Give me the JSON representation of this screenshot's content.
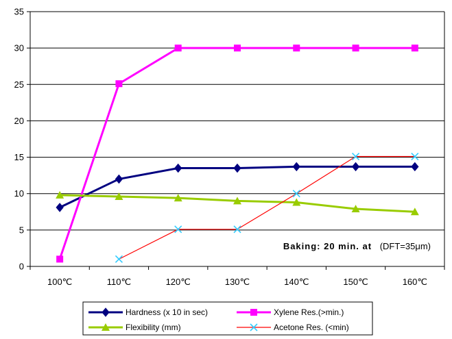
{
  "chart_data": {
    "type": "line",
    "categories": [
      "100℃",
      "110℃",
      "120℃",
      "130℃",
      "140℃",
      "150℃",
      "160℃"
    ],
    "ylim": [
      0,
      35
    ],
    "yticks": [
      0,
      5,
      10,
      15,
      20,
      25,
      30,
      35
    ],
    "grid": true,
    "legend_position": "bottom",
    "annotation": {
      "bold": "Baking: 20 min. at",
      "normal": "(DFT=35μm)"
    },
    "series": [
      {
        "name": "Hardness (x 10 in sec)",
        "color": "#000080",
        "marker": "diamond",
        "values": [
          8.1,
          12.0,
          13.5,
          13.5,
          13.7,
          13.7,
          13.7
        ]
      },
      {
        "name": "Xylene Res.(>min.)",
        "color": "#ff00ff",
        "marker": "square",
        "values": [
          1.0,
          25.1,
          30.0,
          30.0,
          30.0,
          30.0,
          30.0
        ]
      },
      {
        "name": "Flexibility (mm)",
        "color": "#99cc00",
        "marker": "triangle",
        "values": [
          9.8,
          9.6,
          9.4,
          9.0,
          8.8,
          7.9,
          7.5
        ]
      },
      {
        "name": "Acetone Res.  (<min)",
        "color": "#ff0000",
        "marker": "x",
        "marker_color": "#33ccff",
        "values": [
          null,
          1.0,
          5.1,
          5.1,
          10.0,
          15.1,
          15.1
        ]
      }
    ]
  }
}
